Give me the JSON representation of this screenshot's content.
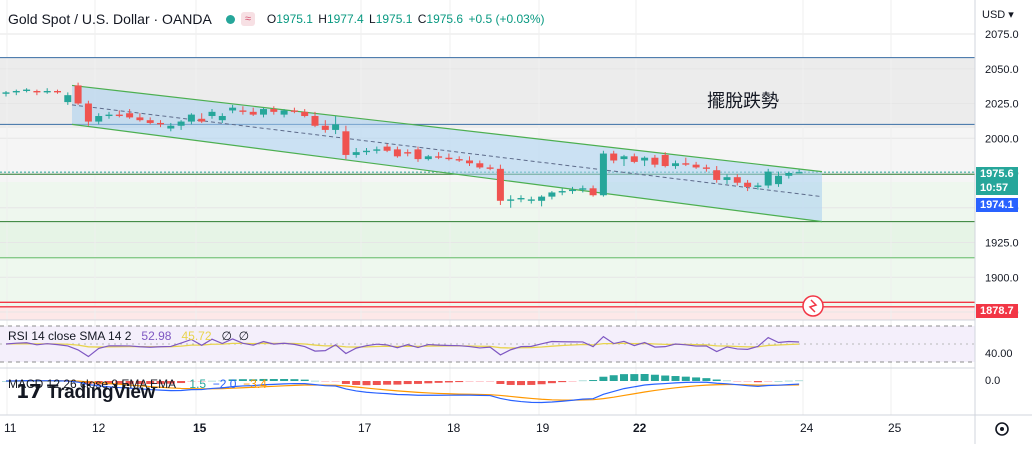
{
  "header": {
    "symbol": "Gold Spot / U.S. Dollar · OANDA",
    "status_color": "#26a69a",
    "wave_icon": "≈",
    "ohlc": [
      {
        "label": "O",
        "value": "1975.1"
      },
      {
        "label": "H",
        "value": "1977.4"
      },
      {
        "label": "L",
        "value": "1975.1"
      },
      {
        "label": "C",
        "value": "1975.6"
      }
    ],
    "change": "+0.5 (+0.03%)"
  },
  "currency": "USD",
  "price_axis": {
    "ticks": [
      "2075.0",
      "2050.0",
      "2025.0",
      "2000.0",
      "1975.0",
      "1950.0",
      "1925.0",
      "1900.0",
      "1875.0"
    ],
    "ticks_num": [
      2075,
      2050,
      2025,
      2000,
      1975,
      1950,
      1925,
      1900,
      1875
    ],
    "last_price": "1975.6",
    "countdown": "10:57",
    "price_label_blue": "1974.1",
    "price_label_red": "1878.7",
    "rsi_tick": "40.00",
    "macd_tick": "0.0"
  },
  "time_axis": {
    "labels": [
      "11",
      "12",
      "15",
      "17",
      "18",
      "19",
      "22",
      "24",
      "25"
    ],
    "bold": [
      "15",
      "22"
    ]
  },
  "annotation": "擺脫跌勢",
  "rsi_legend": {
    "name": "RSI 14 close SMA 14 2",
    "rsi": "52.98",
    "sma": "45.72",
    "e1": "∅",
    "e2": "∅"
  },
  "macd_legend": {
    "name": "MACD 12 26 close 9 EMA EMA",
    "hist": "1.5",
    "macd": "−2.0",
    "signal": "−3.4"
  },
  "branding": "TradingView",
  "colors": {
    "up": "#26a69a",
    "down": "#ef5350",
    "channel": "#4caf50",
    "channel_fill": "#a8d0f0",
    "rsi": "#7e57c2",
    "rsi_sma": "#e8d44d",
    "macd": "#2962ff",
    "signal": "#ff9800",
    "blue_badge": "#2962ff",
    "red_badge": "#f23645"
  },
  "chart_data": {
    "type": "candlestick",
    "price_range": [
      1870,
      2082
    ],
    "ticks": [
      2075,
      2050,
      2025,
      2000,
      1975,
      1950,
      1925,
      1900,
      1875
    ],
    "candles": [
      {
        "o": 2032,
        "h": 2034,
        "l": 2030,
        "c": 2033
      },
      {
        "o": 2033,
        "h": 2035,
        "l": 2031,
        "c": 2034
      },
      {
        "o": 2034,
        "h": 2036,
        "l": 2033,
        "c": 2035
      },
      {
        "o": 2034,
        "h": 2035,
        "l": 2031,
        "c": 2033
      },
      {
        "o": 2033,
        "h": 2036,
        "l": 2032,
        "c": 2034
      },
      {
        "o": 2034,
        "h": 2035,
        "l": 2032,
        "c": 2033
      },
      {
        "o": 2026,
        "h": 2033,
        "l": 2024,
        "c": 2031
      },
      {
        "o": 2038,
        "h": 2040,
        "l": 2024,
        "c": 2025
      },
      {
        "o": 2025,
        "h": 2027,
        "l": 2009,
        "c": 2012
      },
      {
        "o": 2012,
        "h": 2018,
        "l": 2010,
        "c": 2016
      },
      {
        "o": 2016,
        "h": 2019,
        "l": 2014,
        "c": 2017
      },
      {
        "o": 2017,
        "h": 2020,
        "l": 2015,
        "c": 2016
      },
      {
        "o": 2018,
        "h": 2021,
        "l": 2014,
        "c": 2015
      },
      {
        "o": 2015,
        "h": 2018,
        "l": 2012,
        "c": 2013
      },
      {
        "o": 2013,
        "h": 2015,
        "l": 2010,
        "c": 2011
      },
      {
        "o": 2011,
        "h": 2013,
        "l": 2008,
        "c": 2010
      },
      {
        "o": 2007,
        "h": 2011,
        "l": 2005,
        "c": 2009
      },
      {
        "o": 2009,
        "h": 2013,
        "l": 2006,
        "c": 2012
      },
      {
        "o": 2012,
        "h": 2018,
        "l": 2010,
        "c": 2017
      },
      {
        "o": 2014,
        "h": 2018,
        "l": 2011,
        "c": 2012
      },
      {
        "o": 2016,
        "h": 2021,
        "l": 2014,
        "c": 2019
      },
      {
        "o": 2013,
        "h": 2018,
        "l": 2011,
        "c": 2016
      },
      {
        "o": 2020,
        "h": 2024,
        "l": 2018,
        "c": 2022
      },
      {
        "o": 2020,
        "h": 2023,
        "l": 2017,
        "c": 2019
      },
      {
        "o": 2019,
        "h": 2022,
        "l": 2016,
        "c": 2017
      },
      {
        "o": 2017,
        "h": 2022,
        "l": 2015,
        "c": 2021
      },
      {
        "o": 2021,
        "h": 2023,
        "l": 2017,
        "c": 2019
      },
      {
        "o": 2017,
        "h": 2021,
        "l": 2015,
        "c": 2020
      },
      {
        "o": 2020,
        "h": 2022,
        "l": 2018,
        "c": 2019
      },
      {
        "o": 2019,
        "h": 2021,
        "l": 2015,
        "c": 2016
      },
      {
        "o": 2016,
        "h": 2019,
        "l": 2008,
        "c": 2009
      },
      {
        "o": 2009,
        "h": 2013,
        "l": 2004,
        "c": 2006
      },
      {
        "o": 2006,
        "h": 2016,
        "l": 2003,
        "c": 2010
      },
      {
        "o": 2005,
        "h": 2009,
        "l": 1985,
        "c": 1988
      },
      {
        "o": 1988,
        "h": 1993,
        "l": 1986,
        "c": 1990
      },
      {
        "o": 1990,
        "h": 1993,
        "l": 1988,
        "c": 1991
      },
      {
        "o": 1991,
        "h": 1994,
        "l": 1989,
        "c": 1992
      },
      {
        "o": 1994,
        "h": 1996,
        "l": 1990,
        "c": 1991
      },
      {
        "o": 1992,
        "h": 1994,
        "l": 1986,
        "c": 1987
      },
      {
        "o": 1990,
        "h": 1992,
        "l": 1987,
        "c": 1989
      },
      {
        "o": 1992,
        "h": 1994,
        "l": 1983,
        "c": 1985
      },
      {
        "o": 1985,
        "h": 1988,
        "l": 1984,
        "c": 1987
      },
      {
        "o": 1987,
        "h": 1990,
        "l": 1985,
        "c": 1986
      },
      {
        "o": 1986,
        "h": 1989,
        "l": 1984,
        "c": 1985
      },
      {
        "o": 1985,
        "h": 1987,
        "l": 1983,
        "c": 1984
      },
      {
        "o": 1984,
        "h": 1987,
        "l": 1980,
        "c": 1982
      },
      {
        "o": 1982,
        "h": 1984,
        "l": 1978,
        "c": 1979
      },
      {
        "o": 1979,
        "h": 1981,
        "l": 1977,
        "c": 1978
      },
      {
        "o": 1978,
        "h": 1981,
        "l": 1952,
        "c": 1955
      },
      {
        "o": 1955,
        "h": 1959,
        "l": 1950,
        "c": 1956
      },
      {
        "o": 1956,
        "h": 1959,
        "l": 1954,
        "c": 1957
      },
      {
        "o": 1955,
        "h": 1958,
        "l": 1953,
        "c": 1956
      },
      {
        "o": 1955,
        "h": 1959,
        "l": 1951,
        "c": 1958
      },
      {
        "o": 1958,
        "h": 1962,
        "l": 1956,
        "c": 1961
      },
      {
        "o": 1961,
        "h": 1964,
        "l": 1959,
        "c": 1962
      },
      {
        "o": 1962,
        "h": 1965,
        "l": 1960,
        "c": 1963
      },
      {
        "o": 1963,
        "h": 1966,
        "l": 1961,
        "c": 1964
      },
      {
        "o": 1964,
        "h": 1966,
        "l": 1958,
        "c": 1959
      },
      {
        "o": 1959,
        "h": 1991,
        "l": 1958,
        "c": 1989
      },
      {
        "o": 1989,
        "h": 1991,
        "l": 1982,
        "c": 1984
      },
      {
        "o": 1985,
        "h": 1988,
        "l": 1980,
        "c": 1987
      },
      {
        "o": 1987,
        "h": 1989,
        "l": 1982,
        "c": 1983
      },
      {
        "o": 1984,
        "h": 1987,
        "l": 1980,
        "c": 1986
      },
      {
        "o": 1986,
        "h": 1988,
        "l": 1979,
        "c": 1981
      },
      {
        "o": 1988,
        "h": 1990,
        "l": 1979,
        "c": 1980
      },
      {
        "o": 1980,
        "h": 1984,
        "l": 1978,
        "c": 1982
      },
      {
        "o": 1982,
        "h": 1986,
        "l": 1980,
        "c": 1981
      },
      {
        "o": 1981,
        "h": 1983,
        "l": 1978,
        "c": 1979
      },
      {
        "o": 1979,
        "h": 1981,
        "l": 1976,
        "c": 1978
      },
      {
        "o": 1977,
        "h": 1980,
        "l": 1968,
        "c": 1970
      },
      {
        "o": 1970,
        "h": 1974,
        "l": 1967,
        "c": 1972
      },
      {
        "o": 1972,
        "h": 1974,
        "l": 1966,
        "c": 1968
      },
      {
        "o": 1968,
        "h": 1970,
        "l": 1962,
        "c": 1965
      },
      {
        "o": 1965,
        "h": 1968,
        "l": 1963,
        "c": 1966
      },
      {
        "o": 1966,
        "h": 1978,
        "l": 1964,
        "c": 1976
      },
      {
        "o": 1967,
        "h": 1976,
        "l": 1965,
        "c": 1973
      },
      {
        "o": 1973,
        "h": 1976,
        "l": 1971,
        "c": 1975
      },
      {
        "o": 1975.1,
        "h": 1977.4,
        "l": 1975.1,
        "c": 1975.6
      }
    ],
    "channel": {
      "upper": [
        2038,
        1976
      ],
      "lower": [
        2010,
        1940
      ],
      "mid": [
        2024,
        1958
      ]
    },
    "horizontal_levels": [
      2058,
      2010,
      1975.6,
      1974.1,
      1940,
      1914,
      1882,
      1878.7
    ],
    "rsi": {
      "value": 52.98,
      "sma": 45.72,
      "levels": [
        70,
        50,
        30
      ],
      "tick": 40
    },
    "macd": {
      "hist": 1.5,
      "macd": -2.0,
      "signal": -3.4
    }
  }
}
